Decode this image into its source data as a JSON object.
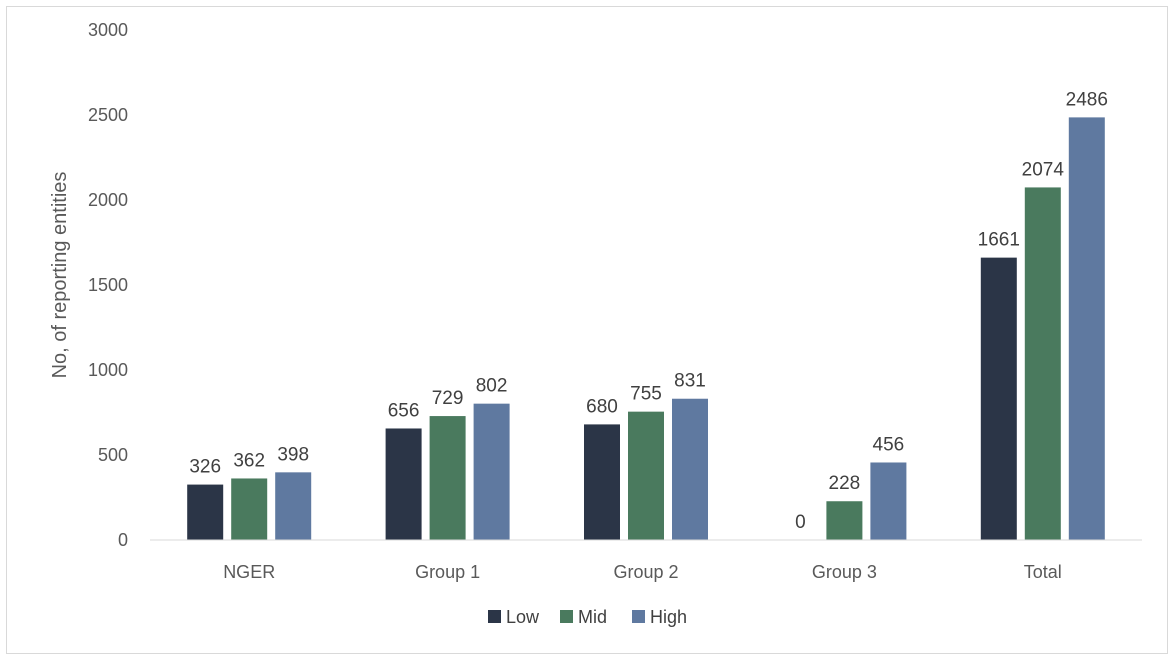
{
  "chart_data": {
    "type": "bar",
    "title": "",
    "xlabel": "",
    "ylabel": "No, of reporting entities",
    "ylim": [
      0,
      3000
    ],
    "yticks": [
      0,
      500,
      1000,
      1500,
      2000,
      2500,
      3000
    ],
    "categories": [
      "NGER",
      "Group 1",
      "Group 2",
      "Group 3",
      "Total"
    ],
    "series": [
      {
        "name": "Low",
        "values": [
          326,
          656,
          680,
          0,
          1661
        ],
        "color": "#2b3547"
      },
      {
        "name": "Mid",
        "values": [
          362,
          729,
          755,
          228,
          2074
        ],
        "color": "#4a7a5e"
      },
      {
        "name": "High",
        "values": [
          398,
          802,
          831,
          456,
          2486
        ],
        "color": "#5f79a0"
      }
    ],
    "legend_position": "bottom",
    "grid": false
  }
}
